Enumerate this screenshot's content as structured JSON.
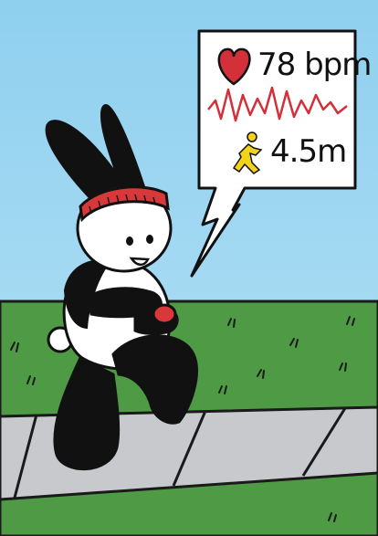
{
  "heart_rate": {
    "icon": "heart-icon",
    "value_text": "78 bpm"
  },
  "distance": {
    "icon": "runner-icon",
    "value_text": "4.5m"
  },
  "colors": {
    "sky": "#b6e1f5",
    "grass": "#4e9a45",
    "sidewalk": "#c7c9cc",
    "headband": "#d8383a",
    "heart": "#d4303a",
    "runner": "#f2d21a"
  }
}
